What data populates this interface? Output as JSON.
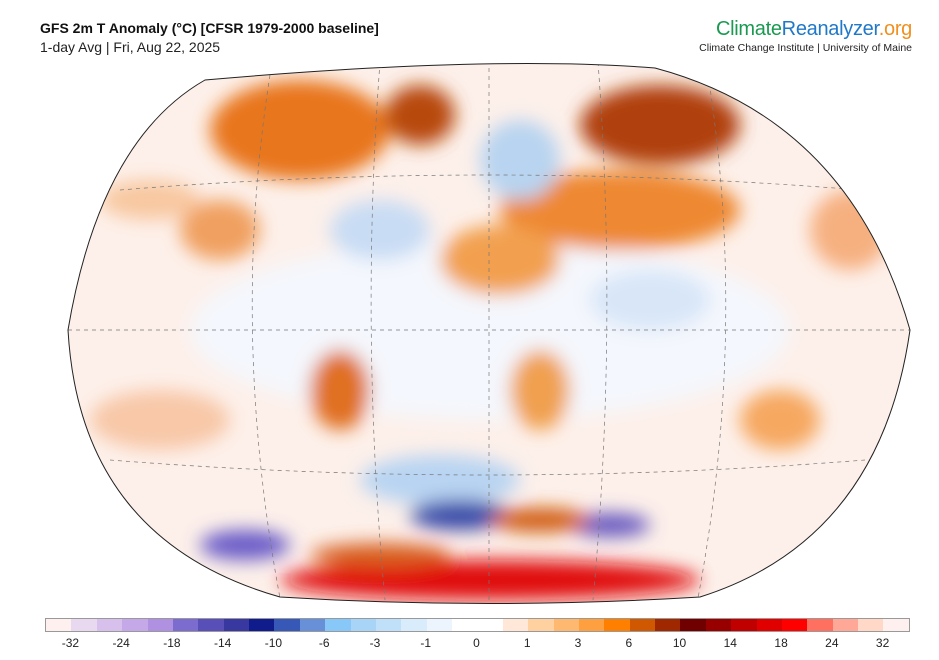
{
  "header": {
    "title": "GFS 2m T Anomaly (°C) [CFSR 1979-2000 baseline]",
    "subtitle": "1-day Avg | Fri, Aug 22, 2025"
  },
  "brand": {
    "part1": "Climate",
    "part2": "Reanalyzer",
    ".org": ".org",
    "tagline": "Climate Change Institute | University of Maine"
  },
  "colorbar": {
    "colors": [
      "#fff0f0",
      "#e8d8f0",
      "#d8c0ec",
      "#c4a8e8",
      "#b090e0",
      "#7c6cd0",
      "#5850b8",
      "#3838a0",
      "#101c8c",
      "#3858b8",
      "#6890d8",
      "#88c8f8",
      "#a8d4f8",
      "#c0e0fa",
      "#d8ecfc",
      "#ecf4fe",
      "#ffffff",
      "#ffffff",
      "#ffe8d8",
      "#ffd0a0",
      "#ffb870",
      "#ffa040",
      "#ff8000",
      "#d05800",
      "#a02800",
      "#700000",
      "#980000",
      "#c00000",
      "#e00000",
      "#ff0000",
      "#ff7060",
      "#ffa898",
      "#ffd8c8",
      "#fff0f0"
    ],
    "labels": [
      "-32",
      "-24",
      "-18",
      "-14",
      "-10",
      "-6",
      "-3",
      "-1",
      "0",
      "1",
      "3",
      "6",
      "10",
      "14",
      "18",
      "24",
      "32"
    ]
  }
}
